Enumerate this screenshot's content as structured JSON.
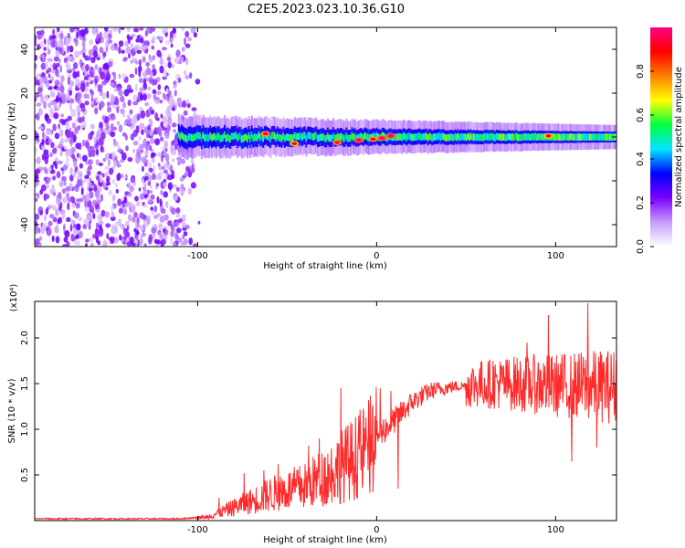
{
  "title": "C2E5.2023.023.10.36.G10",
  "chart_data": [
    {
      "type": "heatmap",
      "name": "spectrogram",
      "xlabel": "Height of straight line (km)",
      "ylabel": "Frequency (Hz)",
      "xlim": [
        -191,
        134
      ],
      "ylim": [
        -50,
        50
      ],
      "x_ticks": [
        -100,
        0,
        100
      ],
      "x_tick_labels": [
        "-100",
        "0",
        "100"
      ],
      "y_ticks": [
        40,
        20,
        0,
        -20,
        -40
      ],
      "y_tick_labels": [
        "40",
        "20",
        "0",
        "-20",
        "-40"
      ],
      "regions": [
        {
          "description": "noise",
          "x": [
            -191,
            -98
          ],
          "freq": [
            -50,
            50
          ],
          "amplitude": [
            0.05,
            0.25
          ]
        },
        {
          "description": "signal band",
          "x": [
            -111,
            134
          ],
          "freq_center": 0,
          "half_width_hz": [
            8,
            4
          ],
          "amplitude": [
            0.2,
            1.0
          ]
        }
      ],
      "ridge_peaks": [
        {
          "x": -62,
          "y": 1.5,
          "a": 0.95
        },
        {
          "x": -46,
          "y": -3,
          "a": 0.9
        },
        {
          "x": -22,
          "y": -2.5,
          "a": 0.95
        },
        {
          "x": -10,
          "y": -1.5,
          "a": 1.0
        },
        {
          "x": -2,
          "y": -1,
          "a": 0.95
        },
        {
          "x": 3,
          "y": -0.5,
          "a": 1.0
        },
        {
          "x": 8,
          "y": 0.5,
          "a": 1.0
        },
        {
          "x": 96,
          "y": 0.5,
          "a": 0.9
        }
      ],
      "colorbar": {
        "label": "Normalized spectral amplitude",
        "ticks": [
          0.0,
          0.2,
          0.4,
          0.6,
          0.8
        ],
        "tick_labels": [
          "0.0",
          "0.2",
          "0.4",
          "0.6",
          "0.8"
        ],
        "range": [
          0,
          1
        ],
        "colors": [
          "#ffffff",
          "#c79cff",
          "#7b00ff",
          "#0000ff",
          "#00e5ff",
          "#00ff40",
          "#ffff00",
          "#ff8000",
          "#ff0000",
          "#ff0080"
        ]
      }
    },
    {
      "type": "line",
      "name": "snr",
      "xlabel": "Height of straight line (km)",
      "ylabel": "SNR (10 * v/v)",
      "multiplier_label": "(x10⁴)",
      "xlim": [
        -191,
        134
      ],
      "ylim": [
        0,
        2.4
      ],
      "x_ticks": [
        -100,
        0,
        100
      ],
      "x_tick_labels": [
        "-100",
        "0",
        "100"
      ],
      "y_ticks": [
        0.5,
        1.0,
        1.5,
        2.0
      ],
      "y_tick_labels": [
        "0.5",
        "1.0",
        "1.5",
        "2.0"
      ],
      "color": "#ff2a2a",
      "trend": [
        {
          "x": -191,
          "y": 0.02
        },
        {
          "x": -110,
          "y": 0.02
        },
        {
          "x": -95,
          "y": 0.04
        },
        {
          "x": -80,
          "y": 0.15
        },
        {
          "x": -60,
          "y": 0.3
        },
        {
          "x": -40,
          "y": 0.4
        },
        {
          "x": -30,
          "y": 0.5
        },
        {
          "x": -20,
          "y": 0.62
        },
        {
          "x": -10,
          "y": 0.75
        },
        {
          "x": 0,
          "y": 0.92
        },
        {
          "x": 10,
          "y": 1.1
        },
        {
          "x": 20,
          "y": 1.3
        },
        {
          "x": 30,
          "y": 1.42
        },
        {
          "x": 40,
          "y": 1.46
        },
        {
          "x": 60,
          "y": 1.5
        },
        {
          "x": 80,
          "y": 1.5
        },
        {
          "x": 100,
          "y": 1.48
        },
        {
          "x": 134,
          "y": 1.47
        }
      ],
      "spikes": [
        {
          "x": -88,
          "y": 0.25
        },
        {
          "x": -74,
          "y": 0.52
        },
        {
          "x": -63,
          "y": 0.55
        },
        {
          "x": -55,
          "y": 0.62
        },
        {
          "x": -38,
          "y": 0.82
        },
        {
          "x": -32,
          "y": 0.9
        },
        {
          "x": -20,
          "y": 1.45
        },
        {
          "x": -10,
          "y": 1.15
        },
        {
          "x": 2,
          "y": 1.45
        },
        {
          "x": 8,
          "y": 1.42
        },
        {
          "x": 12,
          "y": 0.35
        },
        {
          "x": 65,
          "y": 1.75
        },
        {
          "x": 84,
          "y": 1.95
        },
        {
          "x": 96,
          "y": 2.25
        },
        {
          "x": 118,
          "y": 2.38
        },
        {
          "x": 109,
          "y": 0.65
        },
        {
          "x": 123,
          "y": 0.8
        }
      ]
    }
  ]
}
